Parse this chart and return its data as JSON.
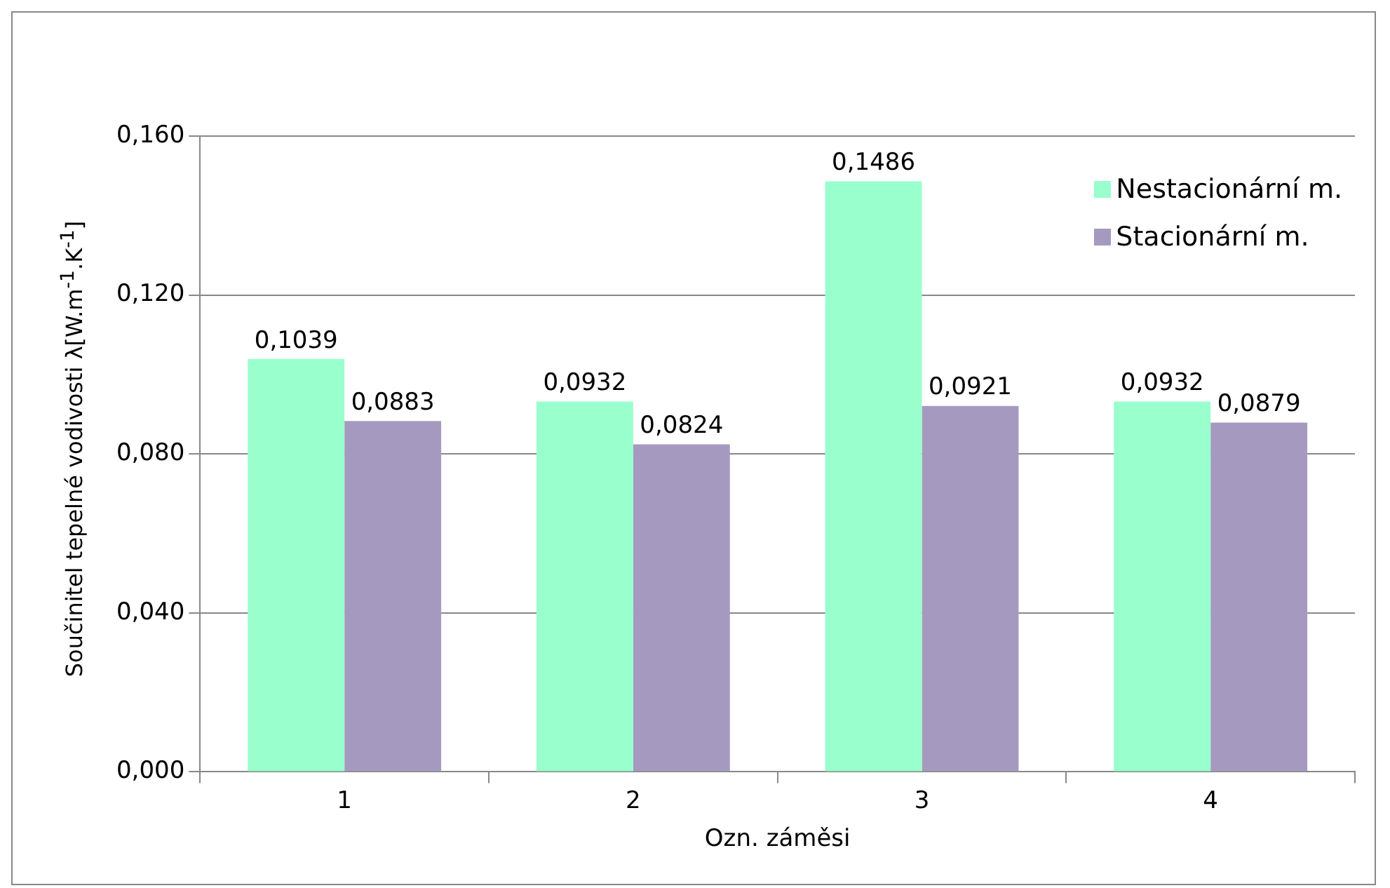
{
  "chart_data": {
    "type": "bar",
    "xlabel": "Ozn. záměsi",
    "ylabel": "Součinitel tepelné vodivosti λ[W.m$^{-1}$.K$^{-1}$]",
    "categories": [
      "1",
      "2",
      "3",
      "4"
    ],
    "series": [
      {
        "name": "Nestacionární m.",
        "color": "#99ffcc",
        "values": [
          0.1039,
          0.0932,
          0.1486,
          0.0932
        ],
        "value_labels": [
          "0,1039",
          "0,0932",
          "0,1486",
          "0,0932"
        ]
      },
      {
        "name": "Stacionární m.",
        "color": "#a699c0",
        "values": [
          0.0883,
          0.0824,
          0.0921,
          0.0879
        ],
        "value_labels": [
          "0,0883",
          "0,0824",
          "0,0921",
          "0,0879"
        ]
      }
    ],
    "ylim": [
      0,
      0.16
    ],
    "yticks": [
      {
        "value": 0,
        "label": "0,000"
      },
      {
        "value": 0.04,
        "label": "0,040"
      },
      {
        "value": 0.08,
        "label": "0,080"
      },
      {
        "value": 0.12,
        "label": "0,120"
      },
      {
        "value": 0.16,
        "label": "0,160"
      }
    ],
    "grid": "y",
    "legend": "top right"
  }
}
